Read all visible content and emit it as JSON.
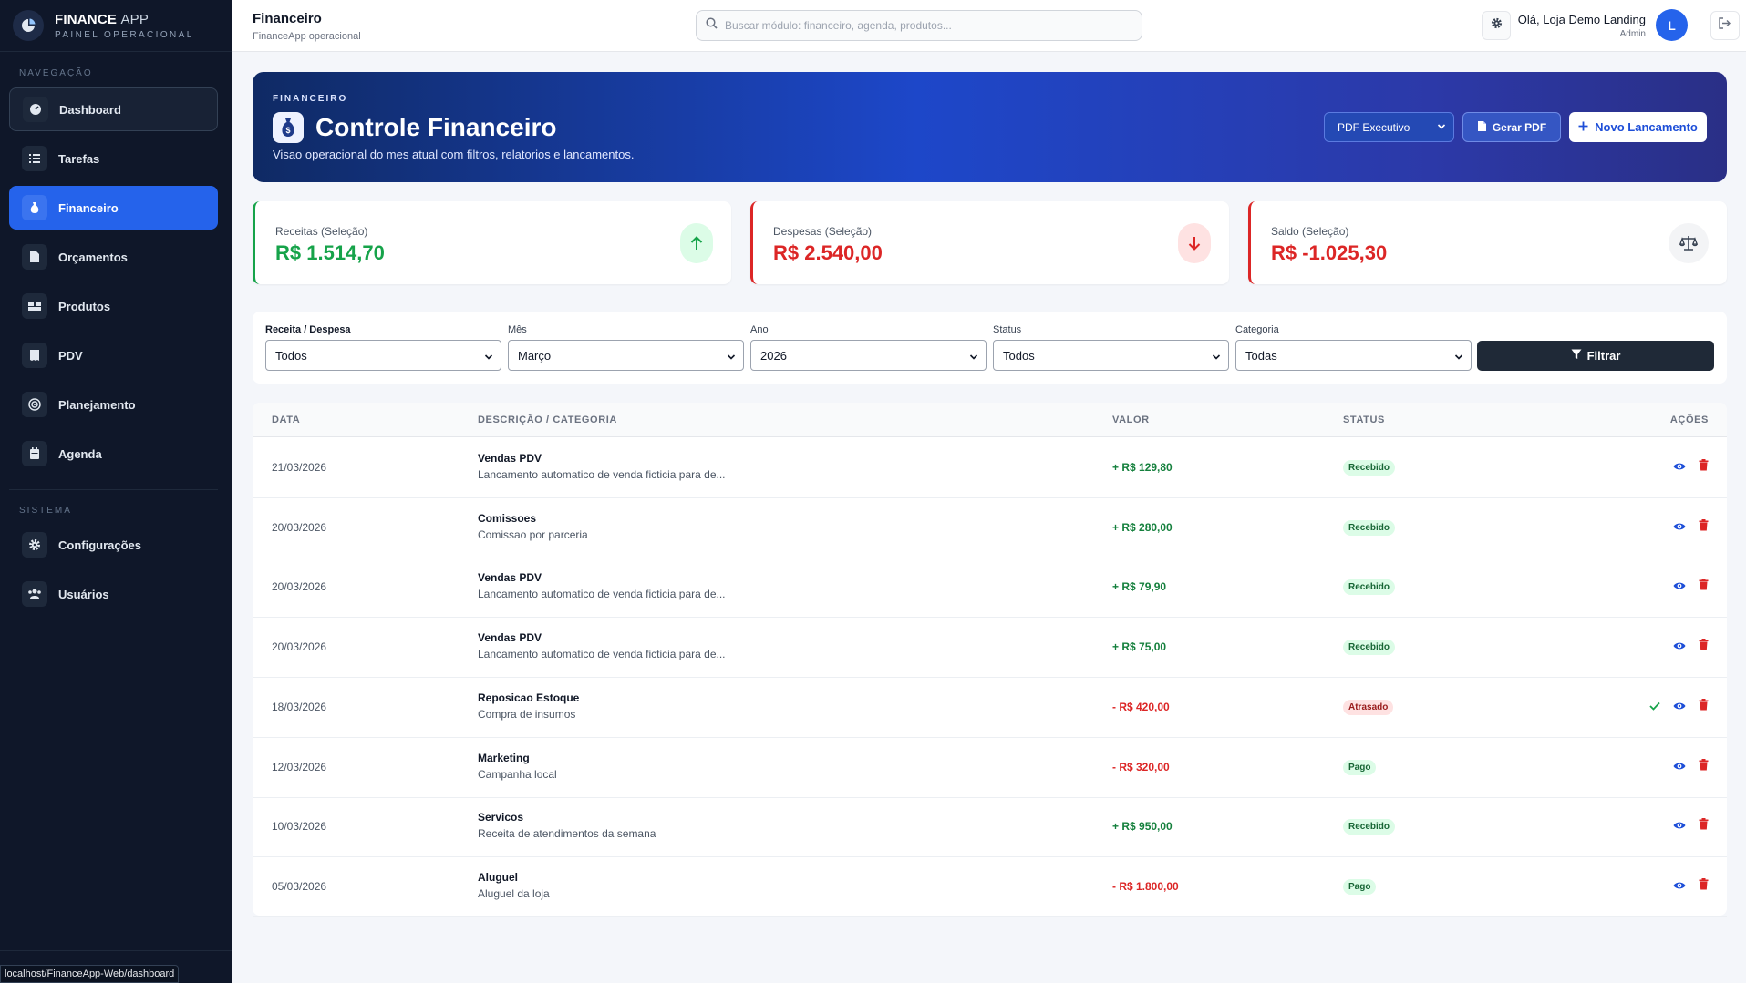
{
  "brand": {
    "title_bold": "FINANCE",
    "title_light": "APP",
    "subtitle": "PAINEL OPERACIONAL"
  },
  "sidebar": {
    "nav_heading": "NAVEGAÇÃO",
    "system_heading": "SISTEMA",
    "items": [
      {
        "label": "Dashboard",
        "icon": "gauge-icon"
      },
      {
        "label": "Tarefas",
        "icon": "list-icon"
      },
      {
        "label": "Financeiro",
        "icon": "money-bag-icon"
      },
      {
        "label": "Orçamentos",
        "icon": "document-icon"
      },
      {
        "label": "Produtos",
        "icon": "boxes-icon"
      },
      {
        "label": "PDV",
        "icon": "receipt-icon"
      },
      {
        "label": "Planejamento",
        "icon": "target-icon"
      },
      {
        "label": "Agenda",
        "icon": "calendar-icon"
      }
    ],
    "system_items": [
      {
        "label": "Configurações",
        "icon": "gear-icon"
      },
      {
        "label": "Usuários",
        "icon": "users-icon"
      }
    ],
    "status_url": "localhost/FinanceApp-Web/dashboard"
  },
  "topbar": {
    "title": "Financeiro",
    "subtitle": "FinanceApp operacional",
    "search_placeholder": "Buscar módulo: financeiro, agenda, produtos...",
    "greeting": "Olá, Loja Demo Landing",
    "role": "Admin",
    "avatar_letter": "L"
  },
  "hero": {
    "kicker": "FINANCEIRO",
    "title": "Controle Financeiro",
    "description": "Visao operacional do mes atual com filtros, relatorios e lancamentos.",
    "pdf_select": "PDF Executivo",
    "gerar_pdf": "Gerar PDF",
    "novo_lancamento": "Novo Lancamento"
  },
  "stats": {
    "receitas": {
      "label": "Receitas (Seleção)",
      "value": "R$ 1.514,70",
      "color": "#16a34a"
    },
    "despesas": {
      "label": "Despesas (Seleção)",
      "value": "R$ 2.540,00",
      "color": "#dc2626"
    },
    "saldo": {
      "label": "Saldo (Seleção)",
      "value": "R$ -1.025,30",
      "color": "#dc2626"
    }
  },
  "filters": {
    "tipo": {
      "label": "Receita / Despesa",
      "value": "Todos"
    },
    "mes": {
      "label": "Mês",
      "value": "Março"
    },
    "ano": {
      "label": "Ano",
      "value": "2026"
    },
    "status": {
      "label": "Status",
      "value": "Todos"
    },
    "categoria": {
      "label": "Categoria",
      "value": "Todas"
    },
    "button": "Filtrar"
  },
  "table": {
    "headers": {
      "data": "DATA",
      "descricao": "DESCRIÇÃO / CATEGORIA",
      "valor": "VALOR",
      "status": "STATUS",
      "acoes": "AÇÕES"
    },
    "rows": [
      {
        "date": "21/03/2026",
        "title": "Vendas PDV",
        "sub": "Lancamento automatico de venda ficticia para de...",
        "value": "+ R$ 129,80",
        "status": "Recebido",
        "kind": "in"
      },
      {
        "date": "20/03/2026",
        "title": "Comissoes",
        "sub": "Comissao por parceria",
        "value": "+ R$ 280,00",
        "status": "Recebido",
        "kind": "in"
      },
      {
        "date": "20/03/2026",
        "title": "Vendas PDV",
        "sub": "Lancamento automatico de venda ficticia para de...",
        "value": "+ R$ 79,90",
        "status": "Recebido",
        "kind": "in"
      },
      {
        "date": "20/03/2026",
        "title": "Vendas PDV",
        "sub": "Lancamento automatico de venda ficticia para de...",
        "value": "+ R$ 75,00",
        "status": "Recebido",
        "kind": "in"
      },
      {
        "date": "18/03/2026",
        "title": "Reposicao Estoque",
        "sub": "Compra de insumos",
        "value": "- R$ 420,00",
        "status": "Atrasado",
        "kind": "out",
        "can_confirm": true
      },
      {
        "date": "12/03/2026",
        "title": "Marketing",
        "sub": "Campanha local",
        "value": "- R$ 320,00",
        "status": "Pago",
        "kind": "out"
      },
      {
        "date": "10/03/2026",
        "title": "Servicos",
        "sub": "Receita de atendimentos da semana",
        "value": "+ R$ 950,00",
        "status": "Recebido",
        "kind": "in"
      },
      {
        "date": "05/03/2026",
        "title": "Aluguel",
        "sub": "Aluguel da loja",
        "value": "- R$ 1.800,00",
        "status": "Pago",
        "kind": "out"
      }
    ]
  }
}
